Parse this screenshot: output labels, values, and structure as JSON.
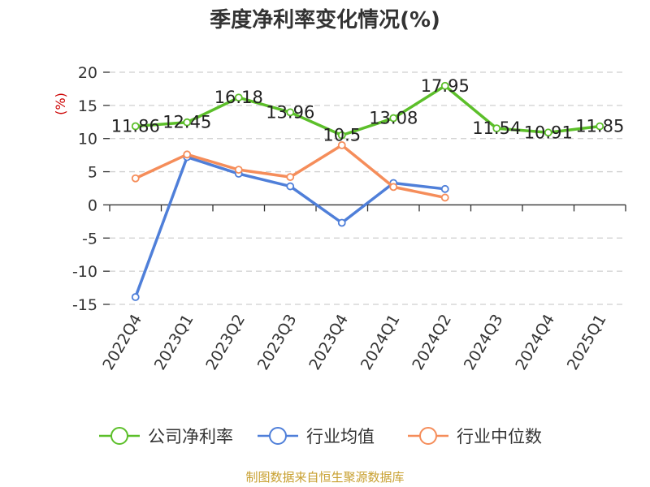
{
  "chart_data": {
    "type": "line",
    "title": "季度净利率变化情况(%)",
    "ylabel": "(%)",
    "ylim": [
      -15,
      20
    ],
    "yticks": [
      20,
      15,
      10,
      5,
      0,
      -5,
      -10,
      -15
    ],
    "categories": [
      "2022Q4",
      "2023Q1",
      "2023Q2",
      "2023Q3",
      "2023Q4",
      "2024Q1",
      "2024Q2",
      "2024Q3",
      "2024Q4",
      "2025Q1"
    ],
    "series": [
      {
        "name": "公司净利率",
        "color": "#5cbf2a",
        "values": [
          11.86,
          12.45,
          16.18,
          13.96,
          10.5,
          13.08,
          17.95,
          11.54,
          10.91,
          11.85
        ],
        "labels": [
          "11.86",
          "12.45",
          "16.18",
          "13.96",
          "10.5",
          "13.08",
          "17.95",
          "11.54",
          "10.91",
          "11.85"
        ]
      },
      {
        "name": "行业均值",
        "color": "#4f7fd9",
        "values": [
          -13.9,
          7.2,
          4.7,
          2.8,
          -2.7,
          3.3,
          2.4,
          null,
          null,
          null
        ]
      },
      {
        "name": "行业中位数",
        "color": "#f58d5a",
        "values": [
          4.0,
          7.6,
          5.3,
          4.2,
          9.0,
          2.7,
          1.1,
          null,
          null,
          null
        ]
      }
    ],
    "grid": true,
    "legend_position": "bottom"
  },
  "source": "制图数据来自恒生聚源数据库"
}
